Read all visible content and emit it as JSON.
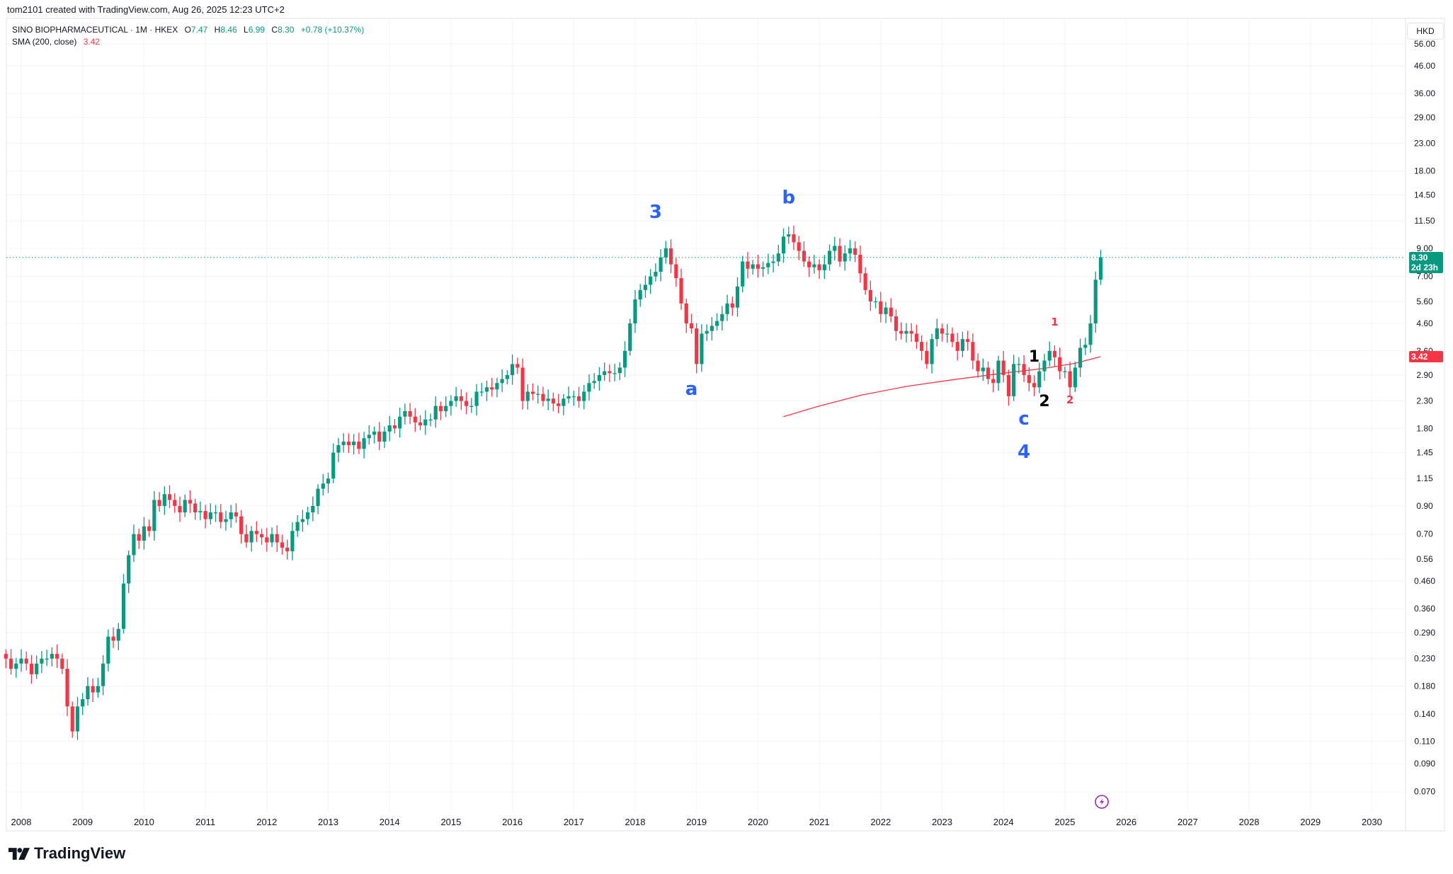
{
  "header": {
    "credit": "tom2101 created with TradingView.com, Aug 26, 2025 12:23 UTC+2"
  },
  "legend": {
    "symbol": "SINO BIOPHARMACEUTICAL · 1M · HKEX",
    "o_label": "O",
    "o": "7.47",
    "h_label": "H",
    "h": "8.46",
    "l_label": "L",
    "l": "6.99",
    "c_label": "C",
    "c": "8.30",
    "change": "+0.78 (+10.37%)",
    "sma_label": "SMA (200, close)",
    "sma_value": "3.42"
  },
  "currency_button": "HKD",
  "price_tag": {
    "price": "8.30",
    "countdown": "2d 23h"
  },
  "sma_tag": "3.42",
  "brand": "TradingView",
  "colors": {
    "up": "#089981",
    "down": "#f23645",
    "sma": "#f23645",
    "wave": "#2962ff",
    "grid": "#f0f3fa"
  },
  "chart_data": {
    "type": "candlestick",
    "title": "SINO BIOPHARMACEUTICAL · 1M · HKEX",
    "scale": "log",
    "ylim": [
      0.065,
      58
    ],
    "xlim": [
      "2007-09",
      "2030-06"
    ],
    "start": "2007-10",
    "first_open": 0.24,
    "close": [
      0.23,
      0.21,
      0.22,
      0.23,
      0.22,
      0.2,
      0.22,
      0.23,
      0.23,
      0.24,
      0.23,
      0.21,
      0.15,
      0.12,
      0.15,
      0.16,
      0.18,
      0.17,
      0.18,
      0.22,
      0.28,
      0.27,
      0.3,
      0.45,
      0.58,
      0.7,
      0.66,
      0.75,
      0.72,
      0.95,
      0.9,
      1.0,
      0.95,
      0.9,
      0.85,
      0.95,
      0.92,
      0.85,
      0.86,
      0.8,
      0.85,
      0.85,
      0.78,
      0.8,
      0.85,
      0.82,
      0.7,
      0.65,
      0.72,
      0.7,
      0.68,
      0.65,
      0.7,
      0.65,
      0.62,
      0.6,
      0.72,
      0.78,
      0.8,
      0.85,
      0.9,
      1.05,
      1.1,
      1.15,
      1.45,
      1.55,
      1.6,
      1.55,
      1.6,
      1.5,
      1.65,
      1.7,
      1.75,
      1.6,
      1.75,
      1.85,
      1.8,
      2.0,
      2.1,
      2.0,
      1.9,
      1.85,
      1.95,
      1.95,
      2.2,
      2.1,
      2.2,
      2.3,
      2.4,
      2.3,
      2.2,
      2.2,
      2.5,
      2.5,
      2.6,
      2.55,
      2.7,
      2.8,
      2.9,
      3.2,
      3.1,
      2.3,
      2.5,
      2.45,
      2.45,
      2.3,
      2.35,
      2.25,
      2.2,
      2.35,
      2.4,
      2.4,
      2.3,
      2.5,
      2.7,
      2.75,
      2.9,
      3.0,
      2.95,
      2.95,
      3.1,
      3.6,
      4.6,
      5.7,
      6.2,
      6.5,
      7.0,
      7.3,
      8.3,
      9.0,
      7.8,
      6.9,
      5.5,
      4.6,
      4.4,
      3.2,
      4.2,
      4.3,
      4.5,
      4.7,
      5.0,
      5.5,
      5.3,
      6.4,
      8.0,
      7.5,
      7.8,
      7.5,
      7.6,
      7.9,
      8.0,
      8.6,
      10.0,
      10.2,
      9.5,
      8.8,
      8.0,
      7.6,
      7.8,
      7.4,
      7.8,
      8.8,
      9.2,
      8.0,
      8.6,
      9.0,
      8.5,
      7.2,
      6.2,
      5.6,
      5.6,
      5.0,
      5.3,
      4.9,
      4.3,
      4.2,
      4.3,
      4.2,
      3.9,
      3.6,
      3.2,
      4.0,
      4.4,
      4.2,
      4.2,
      3.9,
      3.6,
      4.0,
      3.9,
      3.3,
      3.0,
      3.1,
      2.8,
      2.7,
      3.3,
      2.9,
      2.4,
      3.2,
      3.2,
      2.9,
      2.7,
      2.6,
      3.0,
      3.3,
      3.6,
      3.4,
      3.0,
      3.0,
      2.6,
      3.1,
      3.7,
      3.8,
      4.6,
      6.8,
      8.3
    ],
    "sma": {
      "name": "SMA (200, close)",
      "points": [
        [
          "2020-06",
          2.0
        ],
        [
          "2021-01",
          2.2
        ],
        [
          "2021-09",
          2.42
        ],
        [
          "2022-06",
          2.62
        ],
        [
          "2023-03",
          2.78
        ],
        [
          "2024-01",
          2.95
        ],
        [
          "2024-09",
          3.08
        ],
        [
          "2025-03",
          3.22
        ],
        [
          "2025-08",
          3.42
        ]
      ]
    },
    "last_price": 8.3,
    "yticks": [
      "56.00",
      "46.00",
      "36.00",
      "29.00",
      "23.00",
      "18.00",
      "14.50",
      "11.50",
      "9.00",
      "7.00",
      "5.60",
      "4.60",
      "3.60",
      "2.90",
      "2.30",
      "1.80",
      "1.45",
      "1.15",
      "0.90",
      "0.70",
      "0.56",
      "0.460",
      "0.360",
      "0.290",
      "0.230",
      "0.180",
      "0.140",
      "0.110",
      "0.090",
      "0.070"
    ],
    "xticks": [
      "2008",
      "2009",
      "2010",
      "2011",
      "2012",
      "2013",
      "2014",
      "2015",
      "2016",
      "2017",
      "2018",
      "2019",
      "2020",
      "2021",
      "2022",
      "2023",
      "2024",
      "2025",
      "2026",
      "2027",
      "2028",
      "2029",
      "2030"
    ],
    "annotations": [
      {
        "text": "3",
        "date": "2018-05",
        "price": 12.4,
        "color": "#2962ff",
        "size": "large"
      },
      {
        "text": "b",
        "date": "2020-07",
        "price": 14.1,
        "color": "#2962ff",
        "size": "large"
      },
      {
        "text": "a",
        "date": "2018-12",
        "price": 2.55,
        "color": "#2962ff",
        "size": "large"
      },
      {
        "text": "c",
        "date": "2024-05",
        "price": 1.95,
        "color": "#2962ff",
        "size": "large"
      },
      {
        "text": "4",
        "date": "2024-05",
        "price": 1.45,
        "color": "#2962ff",
        "size": "large"
      },
      {
        "text": "1",
        "date": "2024-07",
        "price": 3.4,
        "color": "#000000",
        "size": "medium"
      },
      {
        "text": "2",
        "date": "2024-09",
        "price": 2.28,
        "color": "#000000",
        "size": "medium"
      },
      {
        "text": "1",
        "date": "2024-11",
        "price": 4.65,
        "color": "#f23645",
        "size": "small"
      },
      {
        "text": "2",
        "date": "2025-02",
        "price": 2.32,
        "color": "#f23645",
        "size": "small"
      }
    ]
  }
}
